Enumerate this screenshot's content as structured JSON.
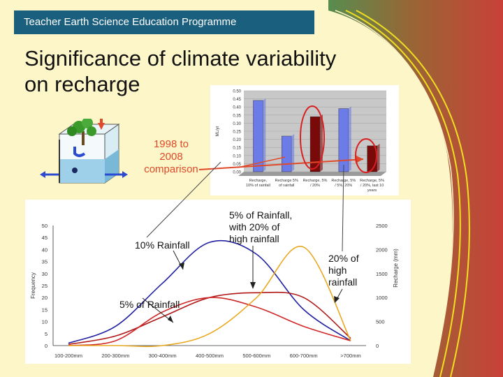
{
  "header": {
    "text": "Teacher Earth Science Education Programme"
  },
  "title": {
    "line1": "Significance of climate variability",
    "line2": "on recharge"
  },
  "callouts": {
    "comparison": [
      "1998 to",
      "2008",
      "comparison"
    ],
    "rainfall10": "10% Rainfall",
    "rainfall5": "5% of Rainfall",
    "rainfall5_20": [
      "5% of Rainfall,",
      "with 20% of",
      "high rainfall"
    ],
    "rainfall20": [
      "20% of",
      "high",
      "rainfall"
    ]
  },
  "colors": {
    "header_bg": "#1b5f7e",
    "slide_bg": "#fdf6c8",
    "accent": "#e04a2a",
    "blue": "#2020a0",
    "red": "#b01818",
    "orange": "#e8a820"
  },
  "chart_data": [
    {
      "type": "bar",
      "ylabel": "ML/yr",
      "ylim": [
        0,
        0.5
      ],
      "yticks": [
        "0.00",
        "0.05",
        "0.10",
        "0.15",
        "0.20",
        "0.25",
        "0.30",
        "0.35",
        "0.40",
        "0.45",
        "0.50"
      ],
      "categories": [
        [
          "Recharge,",
          "10% of rainfall"
        ],
        [
          "Recharge 5%",
          "of rainfall"
        ],
        [
          "Recharge, 5%",
          "/ 20%"
        ],
        [
          "Recharge, 5%",
          "/ 5%, 20%"
        ],
        [
          "Recharge, 5%",
          "/ 20%, last 10",
          "years"
        ]
      ],
      "values": [
        0.44,
        0.22,
        0.34,
        0.39,
        0.16
      ],
      "bar_colors": [
        "#6b7be8",
        "#6b7be8",
        "#7a0a0a",
        "#6b7be8",
        "#7a0a0a"
      ]
    },
    {
      "type": "line",
      "ylabel": "Frequency",
      "y2label": "Recharge (mm)",
      "ylim": [
        0,
        50
      ],
      "y2lim": [
        0,
        2500
      ],
      "yticks": [
        0,
        5,
        10,
        15,
        20,
        25,
        30,
        35,
        40,
        45,
        50
      ],
      "y2ticks": [
        0,
        500,
        1000,
        1500,
        2000,
        2500
      ],
      "categories": [
        "100-200mm",
        "200-300mm",
        "300-400mm",
        "400-500mm",
        "500-600mm",
        "600-700mm",
        ">700mm"
      ],
      "series": [
        {
          "values": [
            1,
            8,
            26,
            43,
            38,
            15,
            2
          ],
          "color": "#2020a0"
        },
        {
          "values": [
            0.5,
            4,
            12,
            20,
            22,
            20,
            3
          ],
          "color": "#b01818"
        },
        {
          "values": [
            0,
            2,
            14,
            20,
            16,
            8,
            2
          ],
          "color": "#d02828"
        },
        {
          "values": [
            0,
            0,
            0,
            5,
            20,
            41,
            2
          ],
          "color": "#e8a820"
        }
      ]
    }
  ]
}
